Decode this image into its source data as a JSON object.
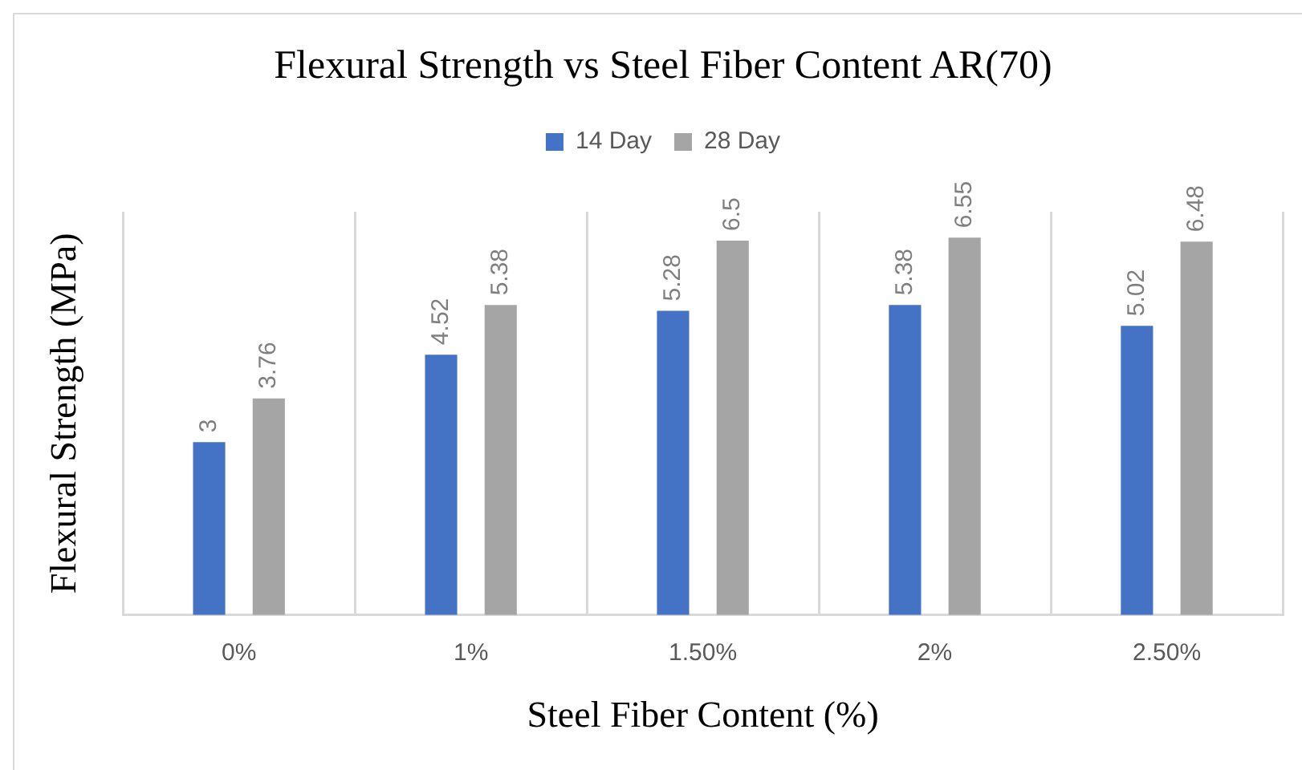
{
  "chart_data": {
    "type": "bar",
    "title": "Flexural Strength vs Steel Fiber Content AR(70)",
    "xlabel": "Steel Fiber Content (%)",
    "ylabel": "Flexural Strength (MPa)",
    "categories": [
      "0%",
      "1%",
      "1.50%",
      "2%",
      "2.50%"
    ],
    "series": [
      {
        "name": "14 Day",
        "color": "#4472c4",
        "values": [
          3,
          4.52,
          5.28,
          5.38,
          5.02
        ]
      },
      {
        "name": "28 Day",
        "color": "#a5a5a5",
        "values": [
          3.76,
          5.38,
          6.5,
          6.55,
          6.48
        ]
      }
    ],
    "data_labels": true,
    "legend": "top",
    "grid": "x",
    "tick_labels": "x"
  }
}
